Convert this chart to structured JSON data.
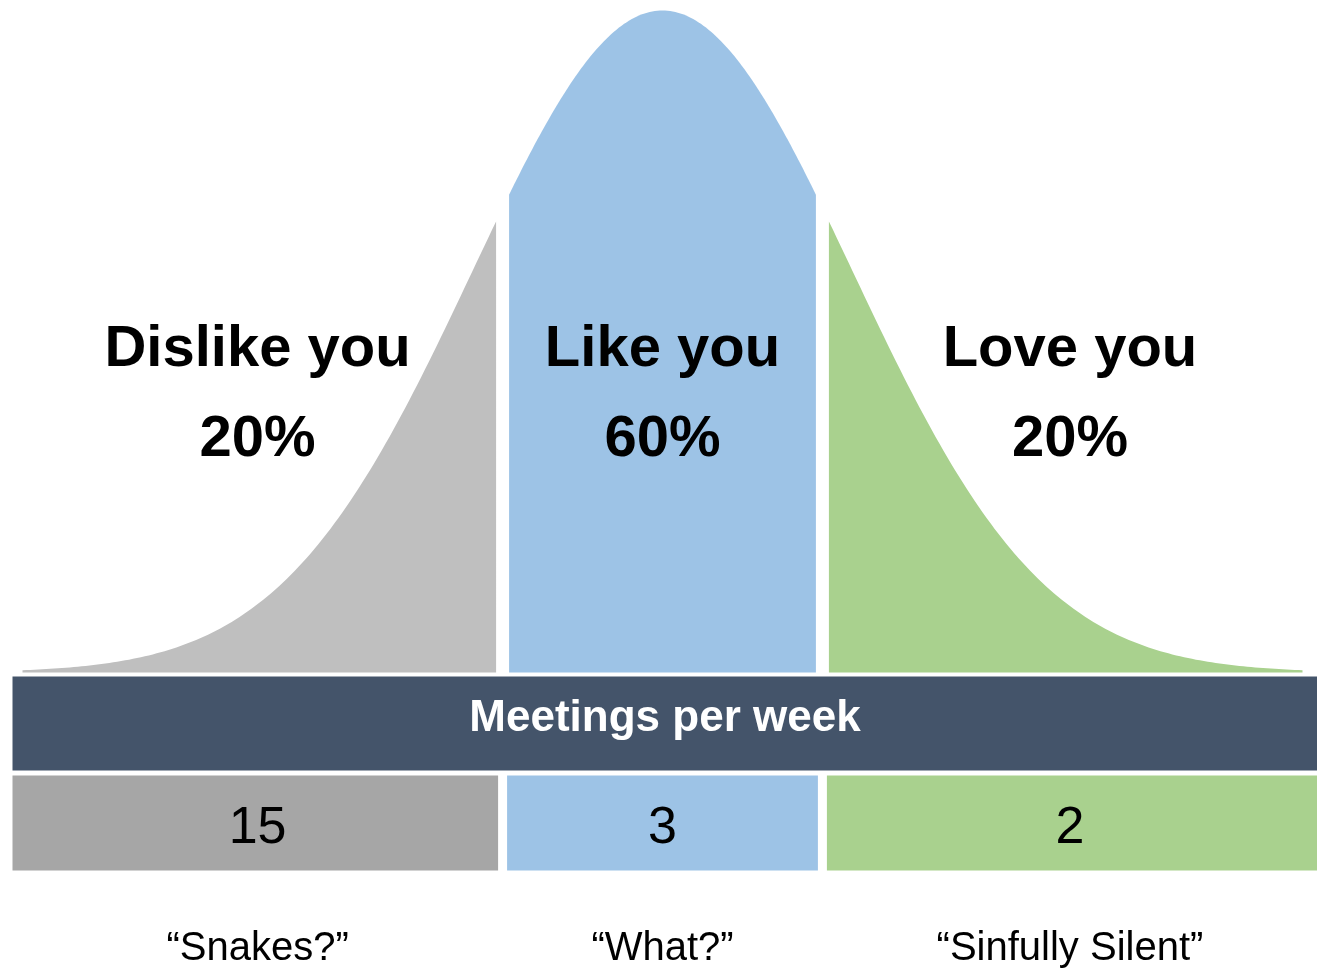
{
  "chart_data": {
    "type": "other",
    "categories": [
      "Dislike you",
      "Like you",
      "Love you"
    ],
    "series": [
      {
        "values": [
          20,
          60,
          20
        ],
        "value_labels": [
          "20%",
          "60%",
          "20%"
        ],
        "colors": [
          "#bfbfbf",
          "#9dc3e6",
          "#a9d18e"
        ]
      },
      {
        "name": "Meetings per week",
        "color": "#44546a",
        "values": [
          15,
          3,
          2
        ],
        "colors": [
          "#a6a6a6",
          "#9dc3e6",
          "#a9d18e"
        ]
      }
    ],
    "data_labels": true,
    "annotations": [
      "“Snakes?”",
      "“What?”",
      "“Sinfully Silent”"
    ]
  }
}
